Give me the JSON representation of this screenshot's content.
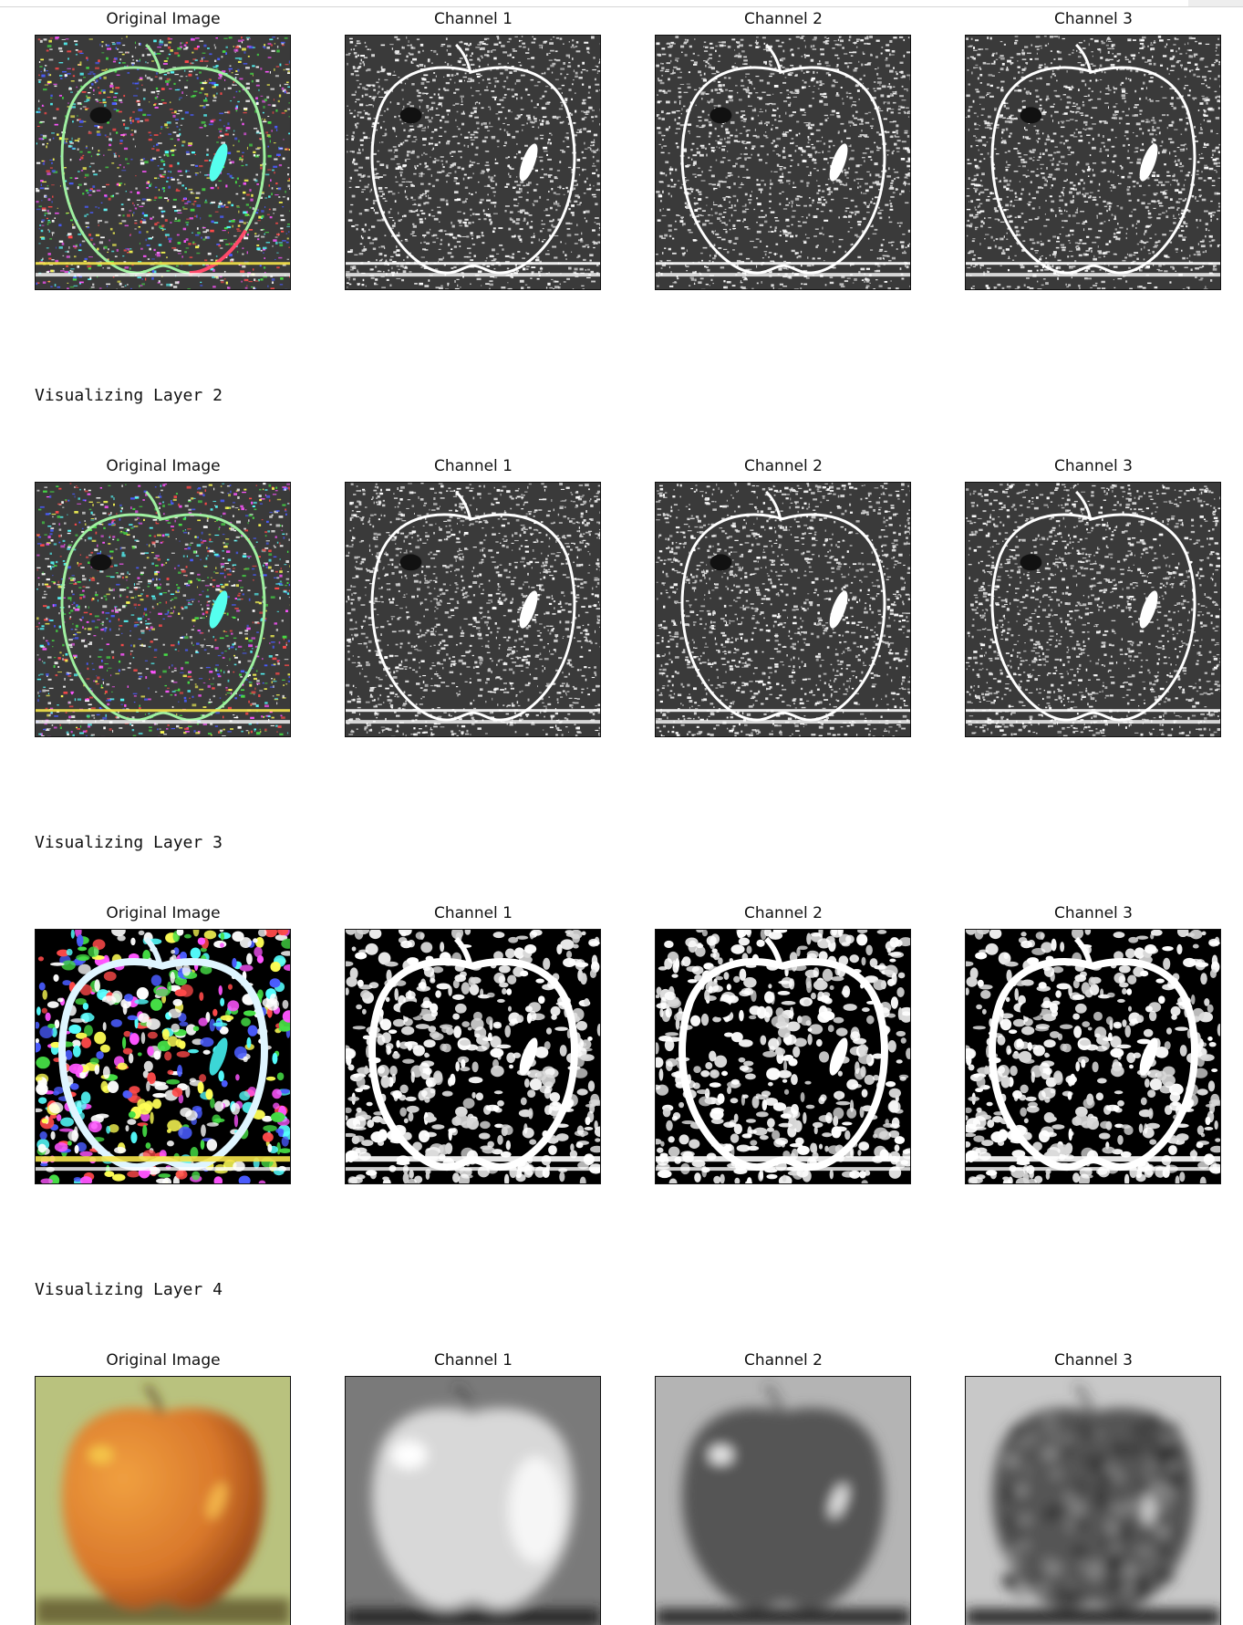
{
  "rows": [
    {
      "heading": "",
      "panels": [
        {
          "title": "Original Image",
          "style": "rgb-edge",
          "icon": "apple-feature-map-color"
        },
        {
          "title": "Channel 1",
          "style": "gray-edge",
          "icon": "apple-feature-map-gray"
        },
        {
          "title": "Channel 2",
          "style": "gray-edge",
          "icon": "apple-feature-map-gray"
        },
        {
          "title": "Channel 3",
          "style": "gray-edge",
          "icon": "apple-feature-map-gray"
        }
      ]
    },
    {
      "heading": "Visualizing Layer 2",
      "panels": [
        {
          "title": "Original Image",
          "style": "rgb-edge",
          "icon": "apple-feature-map-color"
        },
        {
          "title": "Channel 1",
          "style": "gray-edge",
          "icon": "apple-feature-map-gray"
        },
        {
          "title": "Channel 2",
          "style": "gray-edge",
          "icon": "apple-feature-map-gray"
        },
        {
          "title": "Channel 3",
          "style": "gray-edge",
          "icon": "apple-feature-map-gray"
        }
      ]
    },
    {
      "heading": "Visualizing Layer 3",
      "panels": [
        {
          "title": "Original Image",
          "style": "rgb-blob",
          "icon": "apple-feature-map-color"
        },
        {
          "title": "Channel 1",
          "style": "bw-blob",
          "icon": "apple-feature-map-bw"
        },
        {
          "title": "Channel 2",
          "style": "bw-blob",
          "icon": "apple-feature-map-bw"
        },
        {
          "title": "Channel 3",
          "style": "bw-blob",
          "icon": "apple-feature-map-bw"
        }
      ]
    },
    {
      "heading": "Visualizing Layer 4",
      "panels": [
        {
          "title": "Original Image",
          "style": "photo",
          "icon": "apple-photo-blurred"
        },
        {
          "title": "Channel 1",
          "style": "gray-bright",
          "icon": "apple-feature-map-smooth"
        },
        {
          "title": "Channel 2",
          "style": "gray-dark",
          "icon": "apple-feature-map-smooth"
        },
        {
          "title": "Channel 3",
          "style": "gray-noisy",
          "icon": "apple-feature-map-smooth"
        }
      ]
    }
  ],
  "colors": {
    "apple_orange": "#d9782b",
    "apple_highlight": "#f5c64a",
    "background_green": "#b9c27e",
    "border": "#111111"
  }
}
